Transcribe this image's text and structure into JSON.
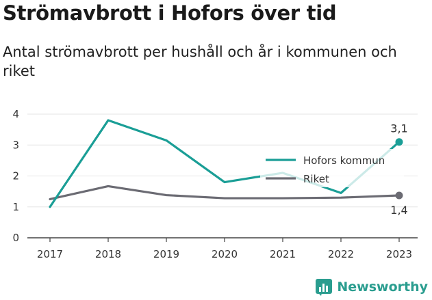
{
  "header": {
    "title": "Strömavbrott i Hofors över tid",
    "subtitle": "Antal strömavbrott per hushåll och år i kommunen och riket"
  },
  "brand": {
    "name": "Newsworthy",
    "icon": "newsworthy-logo-icon"
  },
  "colors": {
    "hofors": "#1a9e96",
    "riket": "#6b6b73",
    "grid": "#e6e6e6"
  },
  "chart_data": {
    "type": "line",
    "title": "Strömavbrott i Hofors över tid",
    "subtitle": "Antal strömavbrott per hushåll och år i kommunen och riket",
    "xlabel": "",
    "ylabel": "",
    "categories": [
      "2017",
      "2018",
      "2019",
      "2020",
      "2021",
      "2022",
      "2023"
    ],
    "ylim": [
      0,
      4
    ],
    "yticks": [
      "0",
      "1",
      "2",
      "3",
      "4"
    ],
    "grid": true,
    "legend": "right",
    "series": [
      {
        "name": "Hofors kommun",
        "values": [
          1.0,
          3.8,
          3.15,
          1.8,
          2.1,
          1.45,
          3.1
        ],
        "end_label": "3,1"
      },
      {
        "name": "Riket",
        "values": [
          1.25,
          1.67,
          1.38,
          1.28,
          1.28,
          1.3,
          1.37
        ],
        "end_label": "1,4"
      }
    ]
  }
}
